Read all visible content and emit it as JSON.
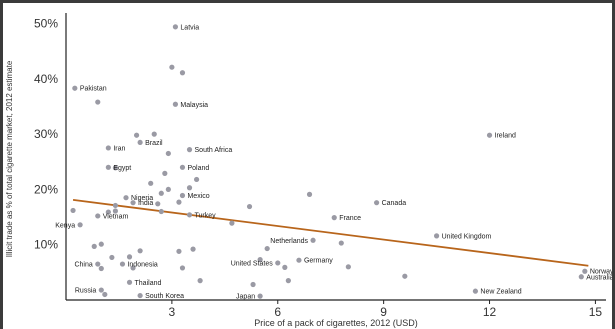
{
  "chart_data": {
    "type": "scatter",
    "title": "",
    "xlabel": "Price of a pack of cigarettes, 2012 (USD)",
    "ylabel": "Illicit trade as % of total cigarette market, 2012 estimate",
    "xlim": [
      0,
      15.3
    ],
    "ylim": [
      0,
      51
    ],
    "xticks": [
      3,
      6,
      9,
      12,
      15
    ],
    "yticks": [
      10,
      20,
      30,
      40,
      50
    ],
    "ytick_labels": [
      "10%",
      "20%",
      "30%",
      "40%",
      "50%"
    ],
    "point_color": "#9a9aa4",
    "trend_color": "#b8651b",
    "trendline": {
      "x": [
        0.2,
        14.8
      ],
      "y": [
        18.1,
        6.2
      ]
    },
    "points": [
      {
        "x": 3.1,
        "y": 49.4,
        "label": "Latvia"
      },
      {
        "x": 0.25,
        "y": 38.3,
        "label": "Pakistan"
      },
      {
        "x": 3.1,
        "y": 35.4,
        "label": "Malaysia"
      },
      {
        "x": 12.0,
        "y": 29.8,
        "label": "Ireland"
      },
      {
        "x": 1.2,
        "y": 27.5,
        "label": "Iran"
      },
      {
        "x": 2.1,
        "y": 28.5,
        "label": "Brazil"
      },
      {
        "x": 3.5,
        "y": 27.2,
        "label": "South Africa"
      },
      {
        "x": 1.2,
        "y": 24.0,
        "label": "Egypt"
      },
      {
        "x": 3.3,
        "y": 24.0,
        "label": "Poland"
      },
      {
        "x": 8.8,
        "y": 17.6,
        "label": "Canada"
      },
      {
        "x": 1.7,
        "y": 18.5,
        "label": "Nigeria"
      },
      {
        "x": 1.9,
        "y": 17.6,
        "label": "India"
      },
      {
        "x": 3.3,
        "y": 18.9,
        "label": "Mexico"
      },
      {
        "x": 3.5,
        "y": 15.4,
        "label": "Turkey"
      },
      {
        "x": 7.6,
        "y": 14.9,
        "label": "France"
      },
      {
        "x": 0.9,
        "y": 15.2,
        "label": "Vietnam"
      },
      {
        "x": 0.4,
        "y": 13.6,
        "label": "Kenya"
      },
      {
        "x": 10.5,
        "y": 11.6,
        "label": "United Kingdom"
      },
      {
        "x": 7.0,
        "y": 10.8,
        "label": "Netherlands"
      },
      {
        "x": 0.9,
        "y": 6.5,
        "label": "China"
      },
      {
        "x": 1.6,
        "y": 6.5,
        "label": "Indonesia"
      },
      {
        "x": 6.0,
        "y": 6.7,
        "label": "United States"
      },
      {
        "x": 6.6,
        "y": 7.2,
        "label": "Germany"
      },
      {
        "x": 14.7,
        "y": 5.2,
        "label": "Norway"
      },
      {
        "x": 14.6,
        "y": 4.2,
        "label": "Australia"
      },
      {
        "x": 1.8,
        "y": 3.2,
        "label": "Thailand"
      },
      {
        "x": 1.0,
        "y": 1.8,
        "label": "Russia"
      },
      {
        "x": 1.1,
        "y": 1.0,
        "label": "Russia (2)"
      },
      {
        "x": 2.1,
        "y": 0.8,
        "label": "South Korea"
      },
      {
        "x": 5.5,
        "y": 0.7,
        "label": "Japan"
      },
      {
        "x": 11.6,
        "y": 1.6,
        "label": "New Zealand"
      },
      {
        "x": 3.0,
        "y": 42.1
      },
      {
        "x": 3.3,
        "y": 41.1
      },
      {
        "x": 0.9,
        "y": 35.8
      },
      {
        "x": 2.5,
        "y": 30.0
      },
      {
        "x": 2.0,
        "y": 29.8
      },
      {
        "x": 2.9,
        "y": 26.5
      },
      {
        "x": 2.8,
        "y": 22.9
      },
      {
        "x": 1.4,
        "y": 23.9
      },
      {
        "x": 3.7,
        "y": 21.8
      },
      {
        "x": 2.4,
        "y": 21.1
      },
      {
        "x": 2.9,
        "y": 20.0
      },
      {
        "x": 3.5,
        "y": 20.3
      },
      {
        "x": 6.9,
        "y": 19.1
      },
      {
        "x": 2.7,
        "y": 19.3
      },
      {
        "x": 1.4,
        "y": 17.1
      },
      {
        "x": 3.2,
        "y": 17.7
      },
      {
        "x": 2.6,
        "y": 17.4
      },
      {
        "x": 0.2,
        "y": 16.2
      },
      {
        "x": 1.4,
        "y": 16.1
      },
      {
        "x": 1.2,
        "y": 15.9
      },
      {
        "x": 2.7,
        "y": 16.0
      },
      {
        "x": 5.2,
        "y": 16.9
      },
      {
        "x": 4.7,
        "y": 13.9
      },
      {
        "x": 0.8,
        "y": 9.7
      },
      {
        "x": 1.0,
        "y": 10.1
      },
      {
        "x": 2.1,
        "y": 8.9
      },
      {
        "x": 3.2,
        "y": 8.8
      },
      {
        "x": 3.6,
        "y": 9.2
      },
      {
        "x": 7.8,
        "y": 10.3
      },
      {
        "x": 1.3,
        "y": 7.7
      },
      {
        "x": 1.8,
        "y": 7.8
      },
      {
        "x": 5.7,
        "y": 9.3
      },
      {
        "x": 1.0,
        "y": 5.7
      },
      {
        "x": 1.9,
        "y": 5.8
      },
      {
        "x": 3.3,
        "y": 5.8
      },
      {
        "x": 5.5,
        "y": 7.3
      },
      {
        "x": 6.2,
        "y": 5.9
      },
      {
        "x": 8.0,
        "y": 6.0
      },
      {
        "x": 9.6,
        "y": 4.3
      },
      {
        "x": 3.8,
        "y": 3.5
      },
      {
        "x": 6.3,
        "y": 3.5
      },
      {
        "x": 5.3,
        "y": 2.8
      }
    ]
  }
}
